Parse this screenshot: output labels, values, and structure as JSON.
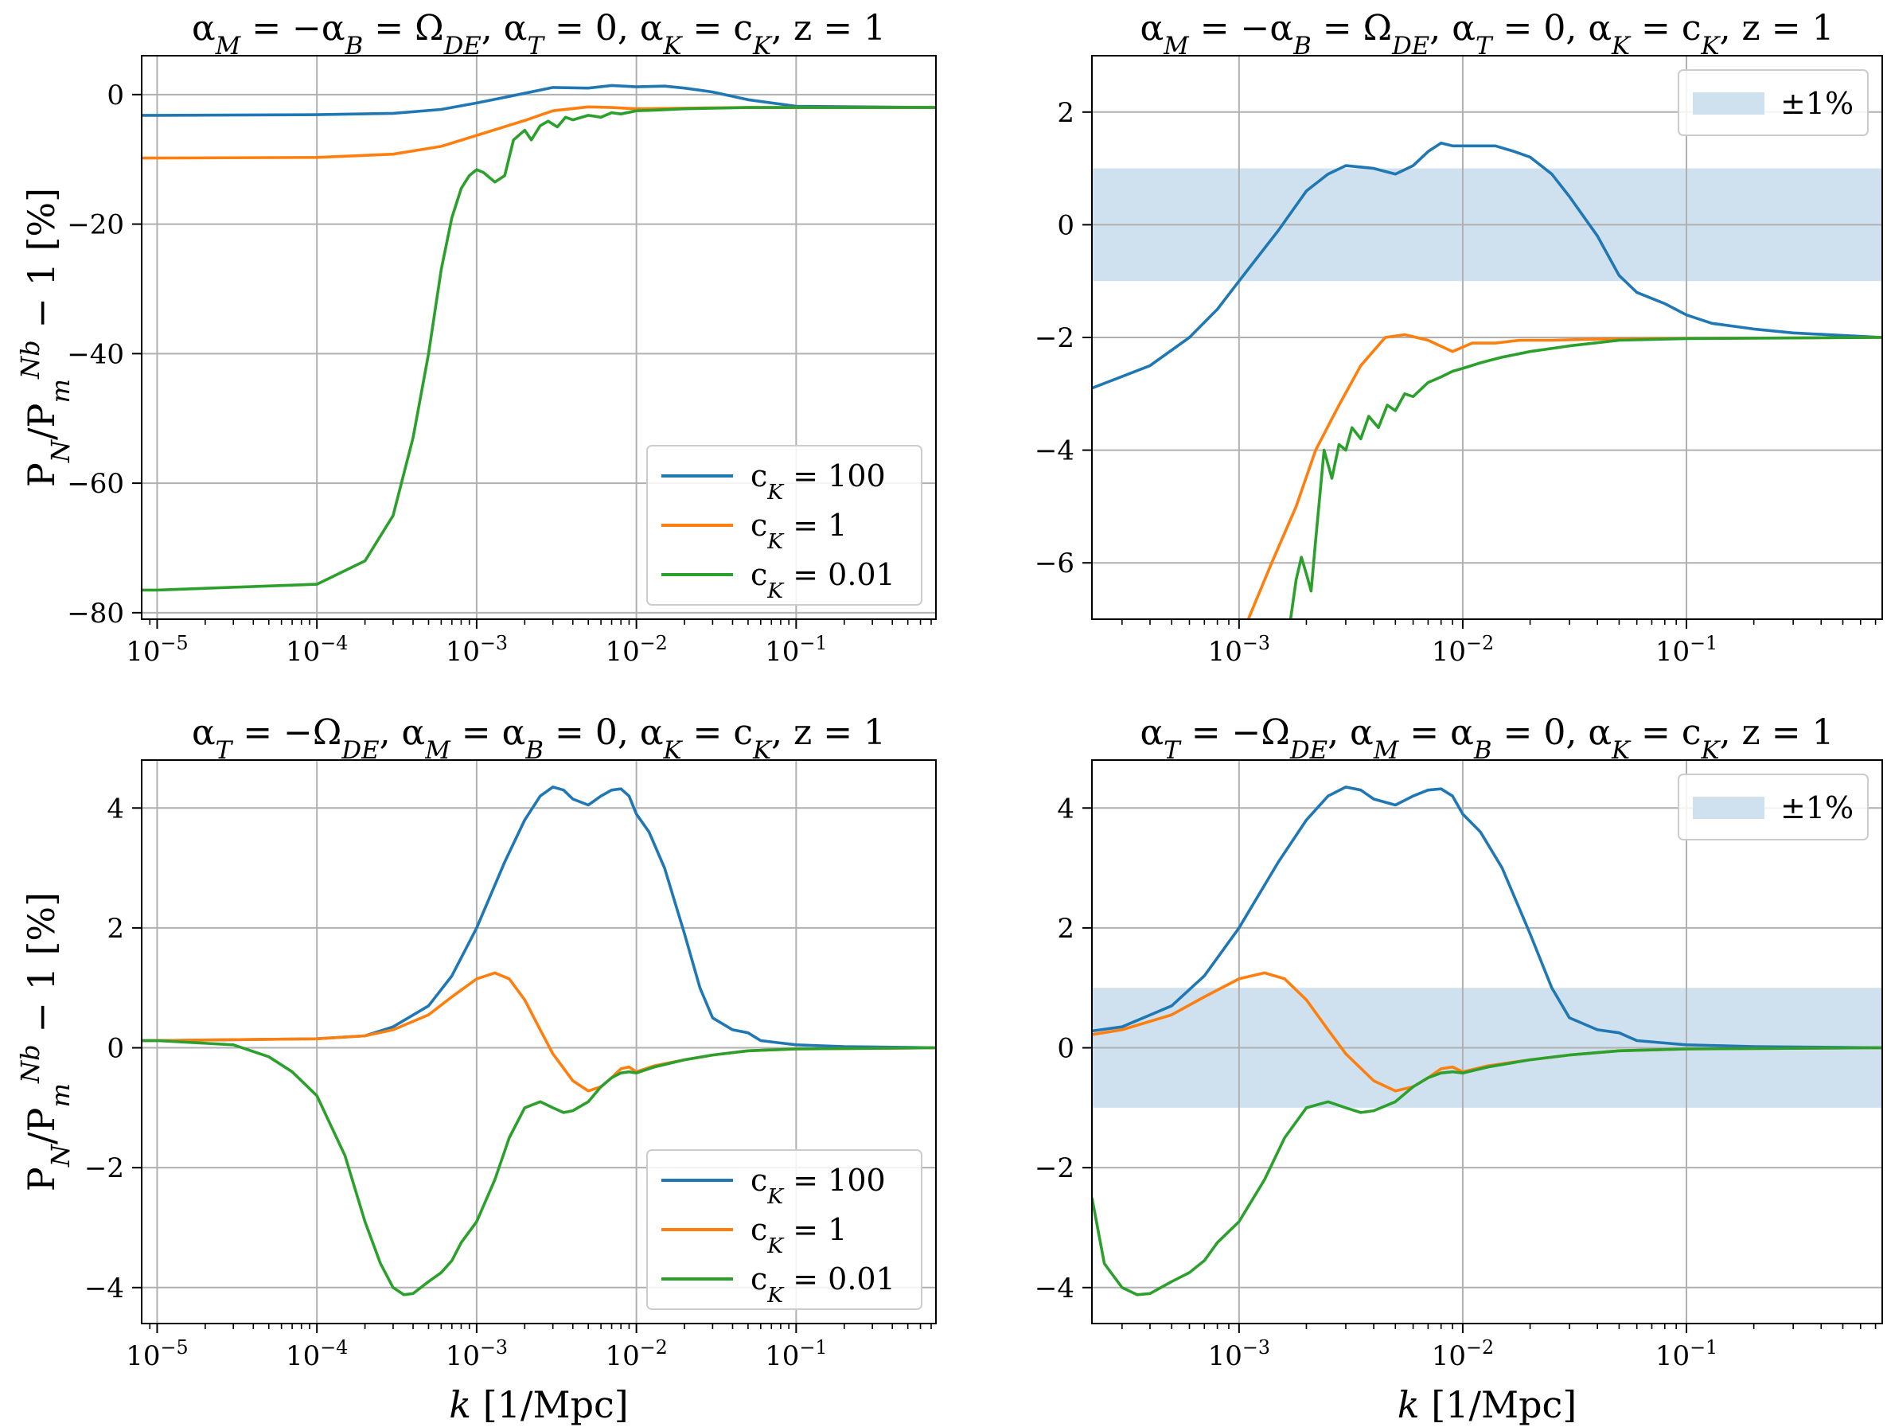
{
  "chart_data": [
    {
      "id": "top-left",
      "type": "line",
      "title": "α_M = −α_B = Ω_DE, α_T = 0, α_K = c_K, z = 1",
      "xlabel": "",
      "ylabel": "P_N/P_m^{Nb} − 1 [%]",
      "xscale": "log",
      "xlim": [
        8e-06,
        0.75
      ],
      "ylim": [
        -81,
        6
      ],
      "xticks": [
        1e-05,
        0.0001,
        0.001,
        0.01,
        0.1
      ],
      "xtick_labels": [
        "10−5",
        "10−4",
        "10−3",
        "10−2",
        "10−1"
      ],
      "yticks": [
        0,
        -20,
        -40,
        -60,
        -80
      ],
      "ytick_labels": [
        "0",
        "−20",
        "−40",
        "−60",
        "−80"
      ],
      "grid": true,
      "legend": {
        "placement": "bottom-right",
        "band_label": ""
      },
      "series": [
        {
          "name": "c_K = 100",
          "color": "#1f77b4",
          "x": [
            8e-06,
            1e-05,
            0.0001,
            0.0003,
            0.0006,
            0.001,
            0.002,
            0.003,
            0.005,
            0.007,
            0.01,
            0.015,
            0.02,
            0.03,
            0.05,
            0.1,
            0.75
          ],
          "y": [
            -3.2,
            -3.2,
            -3.1,
            -2.9,
            -2.3,
            -1.3,
            0.2,
            1.1,
            1.0,
            1.4,
            1.2,
            1.3,
            1.0,
            0.4,
            -0.8,
            -1.8,
            -2.0
          ]
        },
        {
          "name": "c_K = 1",
          "color": "#ff7f0e",
          "x": [
            8e-06,
            1e-05,
            0.0001,
            0.0003,
            0.0006,
            0.001,
            0.002,
            0.003,
            0.005,
            0.007,
            0.01,
            0.02,
            0.05,
            0.75
          ],
          "y": [
            -9.8,
            -9.8,
            -9.7,
            -9.2,
            -8.0,
            -6.3,
            -4.0,
            -2.5,
            -1.9,
            -2.0,
            -2.2,
            -2.1,
            -2.0,
            -2.0
          ]
        },
        {
          "name": "c_K = 0.01",
          "color": "#2ca02c",
          "x": [
            8e-06,
            1e-05,
            0.0001,
            0.0002,
            0.0003,
            0.0004,
            0.0005,
            0.0006,
            0.0007,
            0.0008,
            0.0009,
            0.001,
            0.0011,
            0.0013,
            0.0015,
            0.0017,
            0.002,
            0.0022,
            0.0025,
            0.0028,
            0.0032,
            0.0036,
            0.004,
            0.005,
            0.006,
            0.007,
            0.008,
            0.01,
            0.013,
            0.02,
            0.05,
            0.75
          ],
          "y": [
            -76.5,
            -76.5,
            -75.6,
            -72.0,
            -65.0,
            -53.0,
            -40.0,
            -27.0,
            -19.0,
            -14.5,
            -12.5,
            -11.6,
            -12.0,
            -13.5,
            -12.5,
            -7.0,
            -5.5,
            -7.0,
            -4.8,
            -4.1,
            -5.0,
            -3.5,
            -3.9,
            -3.2,
            -3.5,
            -2.8,
            -3.0,
            -2.5,
            -2.4,
            -2.2,
            -2.0,
            -2.0
          ]
        }
      ]
    },
    {
      "id": "top-right",
      "type": "line",
      "title": "α_M = −α_B = Ω_DE, α_T = 0, α_K = c_K, z = 1",
      "xlabel": "",
      "ylabel": "",
      "xscale": "log",
      "xlim": [
        0.00022,
        0.75
      ],
      "ylim": [
        -7,
        3
      ],
      "xticks": [
        0.001,
        0.01,
        0.1
      ],
      "xtick_labels": [
        "10−3",
        "10−2",
        "10−1"
      ],
      "yticks": [
        2,
        0,
        -2,
        -4,
        -6
      ],
      "ytick_labels": [
        "2",
        "0",
        "−2",
        "−4",
        "−6"
      ],
      "grid": true,
      "band": {
        "ymin": -1,
        "ymax": 1,
        "color": "#cfe1ef"
      },
      "legend": {
        "placement": "top-right",
        "band_label": "±1%"
      },
      "series": [
        {
          "name": "c_K = 100",
          "color": "#1f77b4",
          "x": [
            0.00022,
            0.0004,
            0.0006,
            0.0008,
            0.001,
            0.0015,
            0.002,
            0.0025,
            0.003,
            0.004,
            0.005,
            0.006,
            0.007,
            0.008,
            0.009,
            0.011,
            0.014,
            0.017,
            0.02,
            0.025,
            0.03,
            0.04,
            0.05,
            0.06,
            0.08,
            0.1,
            0.13,
            0.2,
            0.3,
            0.75
          ],
          "y": [
            -2.9,
            -2.5,
            -2.0,
            -1.5,
            -1.0,
            -0.1,
            0.6,
            0.9,
            1.05,
            1.0,
            0.9,
            1.05,
            1.3,
            1.45,
            1.4,
            1.4,
            1.4,
            1.3,
            1.2,
            0.9,
            0.5,
            -0.2,
            -0.9,
            -1.2,
            -1.4,
            -1.6,
            -1.75,
            -1.85,
            -1.92,
            -2.0
          ]
        },
        {
          "name": "c_K = 1",
          "color": "#ff7f0e",
          "x": [
            0.0011,
            0.0014,
            0.0018,
            0.0022,
            0.0028,
            0.0035,
            0.0045,
            0.0055,
            0.007,
            0.009,
            0.011,
            0.014,
            0.018,
            0.025,
            0.04,
            0.07,
            0.75
          ],
          "y": [
            -7.0,
            -6.0,
            -5.0,
            -4.0,
            -3.2,
            -2.5,
            -2.0,
            -1.95,
            -2.05,
            -2.25,
            -2.1,
            -2.1,
            -2.05,
            -2.05,
            -2.03,
            -2.02,
            -2.0
          ]
        },
        {
          "name": "c_K = 0.01",
          "color": "#2ca02c",
          "x": [
            0.0017,
            0.0018,
            0.0019,
            0.002,
            0.0021,
            0.0022,
            0.0024,
            0.0026,
            0.0028,
            0.003,
            0.0032,
            0.0035,
            0.0038,
            0.0042,
            0.0046,
            0.005,
            0.0055,
            0.006,
            0.007,
            0.008,
            0.009,
            0.01,
            0.012,
            0.015,
            0.02,
            0.03,
            0.05,
            0.1,
            0.75
          ],
          "y": [
            -7.0,
            -6.3,
            -5.9,
            -6.2,
            -6.5,
            -5.6,
            -4.0,
            -4.5,
            -3.9,
            -4.0,
            -3.6,
            -3.8,
            -3.4,
            -3.6,
            -3.2,
            -3.3,
            -3.0,
            -3.05,
            -2.8,
            -2.7,
            -2.6,
            -2.55,
            -2.45,
            -2.35,
            -2.25,
            -2.15,
            -2.05,
            -2.02,
            -2.0
          ]
        }
      ]
    },
    {
      "id": "bottom-left",
      "type": "line",
      "title": "α_T = −Ω_DE, α_M = α_B = 0, α_K = c_K, z = 1",
      "xlabel": "k [1/Mpc]",
      "ylabel": "P_N/P_m^{Nb} − 1 [%]",
      "xscale": "log",
      "xlim": [
        8e-06,
        0.75
      ],
      "ylim": [
        -4.6,
        4.8
      ],
      "xticks": [
        1e-05,
        0.0001,
        0.001,
        0.01,
        0.1
      ],
      "xtick_labels": [
        "10−5",
        "10−4",
        "10−3",
        "10−2",
        "10−1"
      ],
      "yticks": [
        4,
        2,
        0,
        -2,
        -4
      ],
      "ytick_labels": [
        "4",
        "2",
        "0",
        "−2",
        "−4"
      ],
      "grid": true,
      "legend": {
        "placement": "bottom-right",
        "band_label": ""
      },
      "series": [
        {
          "name": "c_K = 100",
          "color": "#1f77b4",
          "x": [
            8e-06,
            1e-05,
            0.0001,
            0.0002,
            0.0003,
            0.0005,
            0.0007,
            0.001,
            0.0015,
            0.002,
            0.0025,
            0.003,
            0.0035,
            0.004,
            0.005,
            0.006,
            0.007,
            0.008,
            0.009,
            0.01,
            0.012,
            0.015,
            0.02,
            0.025,
            0.03,
            0.04,
            0.05,
            0.06,
            0.08,
            0.1,
            0.2,
            0.75
          ],
          "y": [
            0.12,
            0.12,
            0.15,
            0.2,
            0.35,
            0.7,
            1.2,
            2.0,
            3.1,
            3.8,
            4.2,
            4.35,
            4.3,
            4.15,
            4.05,
            4.2,
            4.3,
            4.32,
            4.2,
            3.9,
            3.6,
            3.0,
            1.9,
            1.0,
            0.5,
            0.3,
            0.25,
            0.12,
            0.08,
            0.05,
            0.02,
            0.0
          ]
        },
        {
          "name": "c_K = 1",
          "color": "#ff7f0e",
          "x": [
            8e-06,
            1e-05,
            0.0001,
            0.0002,
            0.0003,
            0.0005,
            0.0007,
            0.001,
            0.0013,
            0.0016,
            0.002,
            0.0025,
            0.003,
            0.004,
            0.005,
            0.006,
            0.007,
            0.008,
            0.009,
            0.01,
            0.013,
            0.02,
            0.03,
            0.05,
            0.1,
            0.75
          ],
          "y": [
            0.12,
            0.12,
            0.15,
            0.2,
            0.3,
            0.55,
            0.85,
            1.15,
            1.25,
            1.15,
            0.8,
            0.3,
            -0.1,
            -0.55,
            -0.72,
            -0.65,
            -0.5,
            -0.35,
            -0.32,
            -0.4,
            -0.3,
            -0.2,
            -0.12,
            -0.05,
            -0.02,
            0.0
          ]
        },
        {
          "name": "c_K = 0.01",
          "color": "#2ca02c",
          "x": [
            8e-06,
            1e-05,
            3e-05,
            5e-05,
            7e-05,
            0.0001,
            0.00015,
            0.0002,
            0.00025,
            0.0003,
            0.00035,
            0.0004,
            0.0005,
            0.0006,
            0.0007,
            0.0008,
            0.001,
            0.0013,
            0.0016,
            0.002,
            0.0025,
            0.003,
            0.0035,
            0.004,
            0.005,
            0.006,
            0.007,
            0.008,
            0.009,
            0.01,
            0.013,
            0.02,
            0.03,
            0.05,
            0.1,
            0.75
          ],
          "y": [
            0.12,
            0.12,
            0.05,
            -0.15,
            -0.4,
            -0.8,
            -1.8,
            -2.9,
            -3.6,
            -4.0,
            -4.12,
            -4.1,
            -3.9,
            -3.75,
            -3.55,
            -3.25,
            -2.9,
            -2.2,
            -1.5,
            -1.0,
            -0.9,
            -1.0,
            -1.08,
            -1.05,
            -0.9,
            -0.65,
            -0.5,
            -0.42,
            -0.4,
            -0.42,
            -0.32,
            -0.2,
            -0.12,
            -0.05,
            -0.02,
            0.0
          ]
        }
      ]
    },
    {
      "id": "bottom-right",
      "type": "line",
      "title": "α_T = −Ω_DE, α_M = α_B = 0, α_K = c_K, z = 1",
      "xlabel": "k [1/Mpc]",
      "ylabel": "",
      "xscale": "log",
      "xlim": [
        0.00022,
        0.75
      ],
      "ylim": [
        -4.6,
        4.8
      ],
      "xticks": [
        0.001,
        0.01,
        0.1
      ],
      "xtick_labels": [
        "10−3",
        "10−2",
        "10−1"
      ],
      "yticks": [
        4,
        2,
        0,
        -2,
        -4
      ],
      "ytick_labels": [
        "4",
        "2",
        "0",
        "−2",
        "−4"
      ],
      "grid": true,
      "band": {
        "ymin": -1,
        "ymax": 1,
        "color": "#cfe1ef"
      },
      "legend": {
        "placement": "top-right",
        "band_label": "±1%"
      },
      "series": [
        {
          "name": "c_K = 100",
          "color": "#1f77b4",
          "x": [
            0.00022,
            0.0003,
            0.0005,
            0.0007,
            0.001,
            0.0015,
            0.002,
            0.0025,
            0.003,
            0.0035,
            0.004,
            0.005,
            0.006,
            0.007,
            0.008,
            0.009,
            0.01,
            0.012,
            0.015,
            0.02,
            0.025,
            0.03,
            0.04,
            0.05,
            0.06,
            0.08,
            0.1,
            0.2,
            0.75
          ],
          "y": [
            0.28,
            0.35,
            0.7,
            1.2,
            2.0,
            3.1,
            3.8,
            4.2,
            4.35,
            4.3,
            4.15,
            4.05,
            4.2,
            4.3,
            4.32,
            4.2,
            3.9,
            3.6,
            3.0,
            1.9,
            1.0,
            0.5,
            0.3,
            0.25,
            0.12,
            0.08,
            0.05,
            0.02,
            0.0
          ]
        },
        {
          "name": "c_K = 1",
          "color": "#ff7f0e",
          "x": [
            0.00022,
            0.0003,
            0.0005,
            0.0007,
            0.001,
            0.0013,
            0.0016,
            0.002,
            0.0025,
            0.003,
            0.004,
            0.005,
            0.006,
            0.007,
            0.008,
            0.009,
            0.01,
            0.013,
            0.02,
            0.03,
            0.05,
            0.1,
            0.75
          ],
          "y": [
            0.22,
            0.3,
            0.55,
            0.85,
            1.15,
            1.25,
            1.15,
            0.8,
            0.3,
            -0.1,
            -0.55,
            -0.72,
            -0.65,
            -0.5,
            -0.35,
            -0.32,
            -0.4,
            -0.3,
            -0.2,
            -0.12,
            -0.05,
            -0.02,
            0.0
          ]
        },
        {
          "name": "c_K = 0.01",
          "color": "#2ca02c",
          "x": [
            0.00022,
            0.00025,
            0.0003,
            0.00035,
            0.0004,
            0.0005,
            0.0006,
            0.0007,
            0.0008,
            0.001,
            0.0013,
            0.0016,
            0.002,
            0.0025,
            0.003,
            0.0035,
            0.004,
            0.005,
            0.006,
            0.007,
            0.008,
            0.009,
            0.01,
            0.013,
            0.02,
            0.03,
            0.05,
            0.1,
            0.75
          ],
          "y": [
            -2.5,
            -3.6,
            -4.0,
            -4.12,
            -4.1,
            -3.9,
            -3.75,
            -3.55,
            -3.25,
            -2.9,
            -2.2,
            -1.5,
            -1.0,
            -0.9,
            -1.0,
            -1.08,
            -1.05,
            -0.9,
            -0.65,
            -0.5,
            -0.42,
            -0.4,
            -0.42,
            -0.32,
            -0.2,
            -0.12,
            -0.05,
            -0.02,
            0.0
          ]
        }
      ]
    }
  ]
}
